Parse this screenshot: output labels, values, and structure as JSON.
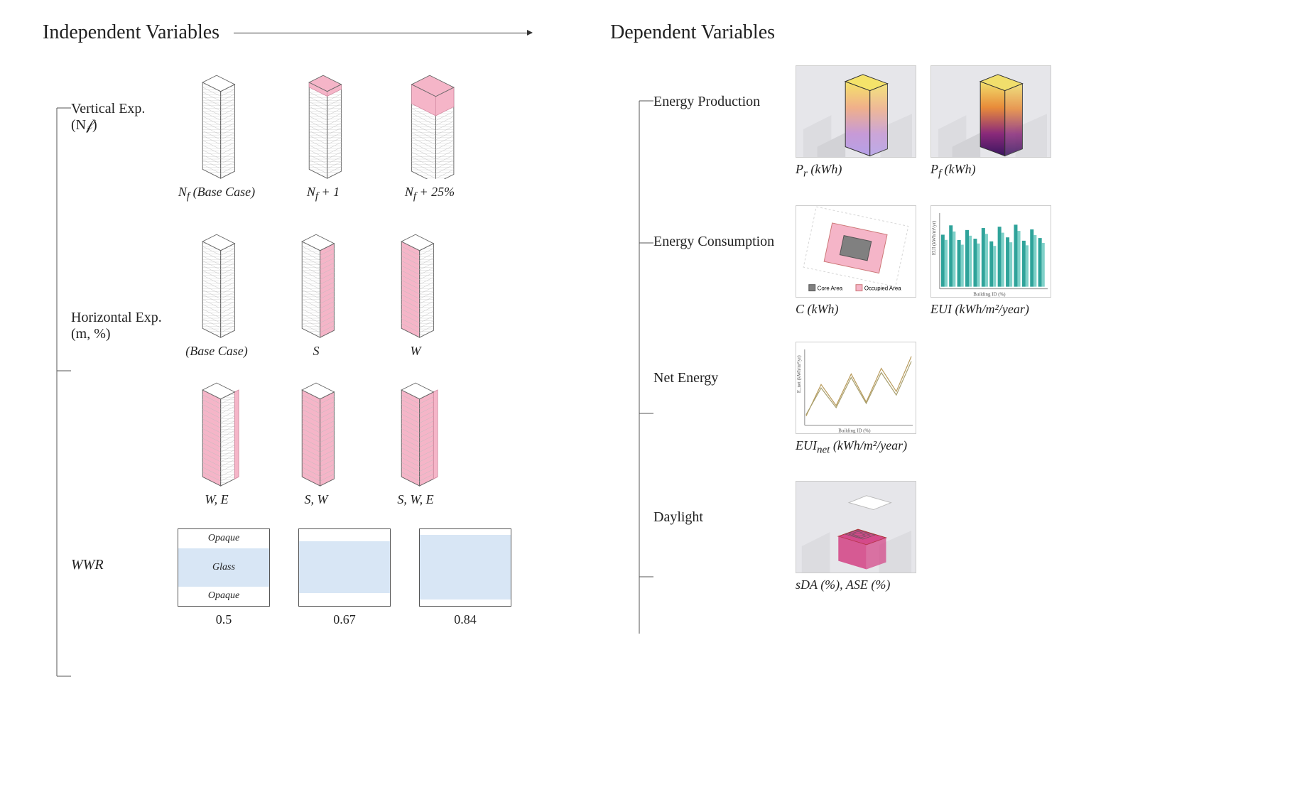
{
  "headers": {
    "independent": "Independent Variables",
    "dependent": "Dependent Variables"
  },
  "independent": {
    "vertical": {
      "label": "Vertical Exp.",
      "sublabel": "(N𝒻)",
      "items": [
        {
          "caption_html": "N<sub>f</sub> (Base Case)",
          "pink_top_floors": 0,
          "wider": false
        },
        {
          "caption_html": "N<sub>f</sub> + 1",
          "pink_top_floors": 1,
          "wider": false
        },
        {
          "caption_html": "N<sub>f</sub> + 25%",
          "pink_top_floors": 4,
          "wider": true
        }
      ],
      "building": {
        "stroke": "#666666",
        "fill": "#ffffff",
        "hatch": "#bdbdbd",
        "pink": "#f5b5c8",
        "pink_stroke": "#d48ca3"
      }
    },
    "horizontal": {
      "label": "Horizontal Exp.",
      "sublabel": "(m, %)",
      "items": [
        {
          "caption": "(Base Case)",
          "faces_pink": []
        },
        {
          "caption": "S",
          "faces_pink": [
            "S"
          ]
        },
        {
          "caption": "W",
          "faces_pink": [
            "W"
          ]
        },
        {
          "caption": "W, E",
          "faces_pink": [
            "W",
            "E"
          ]
        },
        {
          "caption": "S, W",
          "faces_pink": [
            "S",
            "W"
          ]
        },
        {
          "caption": "S, W, E",
          "faces_pink": [
            "S",
            "W",
            "E"
          ]
        }
      ]
    },
    "wwr": {
      "label": "WWR",
      "items": [
        {
          "value": "0.5",
          "glass_ratio": 0.5,
          "show_labels": true
        },
        {
          "value": "0.67",
          "glass_ratio": 0.67,
          "show_labels": false
        },
        {
          "value": "0.84",
          "glass_ratio": 0.84,
          "show_labels": false
        }
      ],
      "labels": {
        "opaque": "Opaque",
        "glass": "Glass"
      },
      "colors": {
        "glass": "#d8e6f5",
        "border": "#555555"
      }
    }
  },
  "dependent": {
    "rows": [
      {
        "label": "Energy Production",
        "thumbs": [
          {
            "id": "pr",
            "caption_html": "<i>P<sub>r</sub></i> (kWh)",
            "type": "render_gradient",
            "gradient": [
              "#f5e36a",
              "#f0b08a",
              "#c79ad6",
              "#b5a1e8"
            ]
          },
          {
            "id": "pf",
            "caption_html": "<i>P<sub>f</sub></i> (kWh)",
            "type": "render_gradient",
            "gradient": [
              "#f1df6c",
              "#e88b3a",
              "#8a2a7a",
              "#3a1560"
            ]
          }
        ]
      },
      {
        "label": "Energy Consumption",
        "thumbs": [
          {
            "id": "c",
            "caption_html": "<i>C</i>  (kWh)",
            "type": "core_plan",
            "legend": [
              {
                "label": "Core Area",
                "color": "#808080"
              },
              {
                "label": "Occupied Area",
                "color": "#f5b5c8"
              }
            ]
          },
          {
            "id": "eui",
            "caption_html": "<i>EUI</i> (kWh/m²/year)",
            "type": "bar_chart",
            "bars": [
              78,
              92,
              70,
              85,
              72,
              88,
              68,
              90,
              74,
              93,
              69,
              86,
              73
            ],
            "colors": [
              "#2fa39a",
              "#7fd1c9"
            ],
            "ylabel": "EUI (kWh/m²/yr)",
            "xlabel": "Building ID (%)"
          }
        ]
      },
      {
        "label": "Net Energy",
        "thumbs": [
          {
            "id": "euinet",
            "caption_html": "<i>EUI<sub>net</sub></i> (kWh/m²/year)",
            "type": "line_chart",
            "series": [
              [
                10,
                55,
                25,
                70,
                30,
                78,
                45,
                95
              ],
              [
                12,
                50,
                22,
                65,
                28,
                72,
                40,
                88
              ]
            ],
            "colors": [
              "#b89a5a",
              "#a8a070"
            ],
            "ylabel": "E_net (kWh/m²/yr)",
            "xlabel": "Building ID (%)"
          }
        ]
      },
      {
        "label": "Daylight",
        "thumbs": [
          {
            "id": "daylight",
            "caption_html": "<i>sDA</i> (%), <i>ASE</i> (%)",
            "type": "daylight_render",
            "accent": "#d44a8a"
          }
        ]
      }
    ]
  },
  "style": {
    "font": "Georgia, 'Times New Roman', serif",
    "title_fontsize": 28,
    "label_fontsize": 20,
    "caption_fontsize": 18,
    "background": "#ffffff",
    "text": "#222222",
    "branch_stroke": "#555555"
  }
}
